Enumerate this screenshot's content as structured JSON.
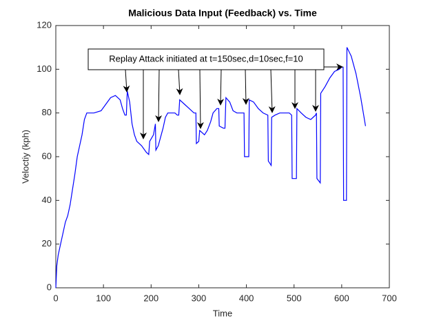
{
  "chart_data": {
    "type": "line",
    "title": "Malicious Data Input (Feedback) vs. Time",
    "xlabel": "Time",
    "ylabel": "Veloctiy (kph)",
    "annotation": "Replay Attack initiated at t=150sec,d=10sec,f=10",
    "series": [
      {
        "color": "#0000ff",
        "x": [
          0,
          2,
          5,
          10,
          15,
          20,
          25,
          30,
          35,
          40,
          45,
          50,
          55,
          60,
          65,
          80,
          95,
          105,
          115,
          125,
          135,
          140,
          145,
          148,
          150,
          155,
          160,
          165,
          170,
          180,
          190,
          195,
          197,
          205,
          209,
          210,
          215,
          225,
          230,
          235,
          250,
          255,
          258,
          260,
          270,
          280,
          290,
          294,
          295,
          300,
          302,
          307,
          312,
          318,
          325,
          330,
          338,
          342,
          343,
          352,
          355,
          357,
          365,
          372,
          380,
          395,
          396,
          405,
          406,
          415,
          425,
          435,
          445,
          446,
          452,
          453,
          460,
          470,
          490,
          495,
          496,
          505,
          506,
          515,
          525,
          535,
          540,
          545,
          547,
          548,
          555,
          556,
          565,
          575,
          585,
          595,
          600,
          603,
          604,
          610,
          611,
          620,
          630,
          640,
          650
        ],
        "values": [
          0,
          10,
          15,
          20,
          25,
          30,
          33,
          38,
          45,
          52,
          60,
          65,
          70,
          77,
          80,
          80,
          81,
          84,
          87,
          88,
          86,
          82,
          79,
          79,
          90,
          85,
          75,
          70,
          67,
          65,
          62,
          61,
          67,
          70,
          75,
          63,
          65,
          73,
          78,
          80,
          80,
          79,
          79,
          86,
          84,
          82,
          80,
          80,
          66,
          67,
          72,
          71,
          70,
          72,
          76,
          80,
          82,
          82,
          74,
          73,
          73,
          87,
          85,
          81,
          80,
          80,
          60,
          60,
          86,
          85,
          82,
          80,
          79,
          58,
          56,
          78,
          79,
          80,
          80,
          79,
          50,
          50,
          82,
          80,
          78,
          77,
          78,
          79,
          80,
          50,
          48,
          89,
          92,
          96,
          99,
          100,
          101,
          101,
          40,
          40,
          110,
          106,
          98,
          87,
          74
        ]
      }
    ],
    "xlim": [
      0,
      700
    ],
    "xticks": [
      0,
      100,
      200,
      300,
      400,
      500,
      600,
      700
    ],
    "ylim": [
      0,
      120
    ],
    "yticks": [
      0,
      20,
      40,
      60,
      80,
      100,
      120
    ],
    "grid": false
  }
}
